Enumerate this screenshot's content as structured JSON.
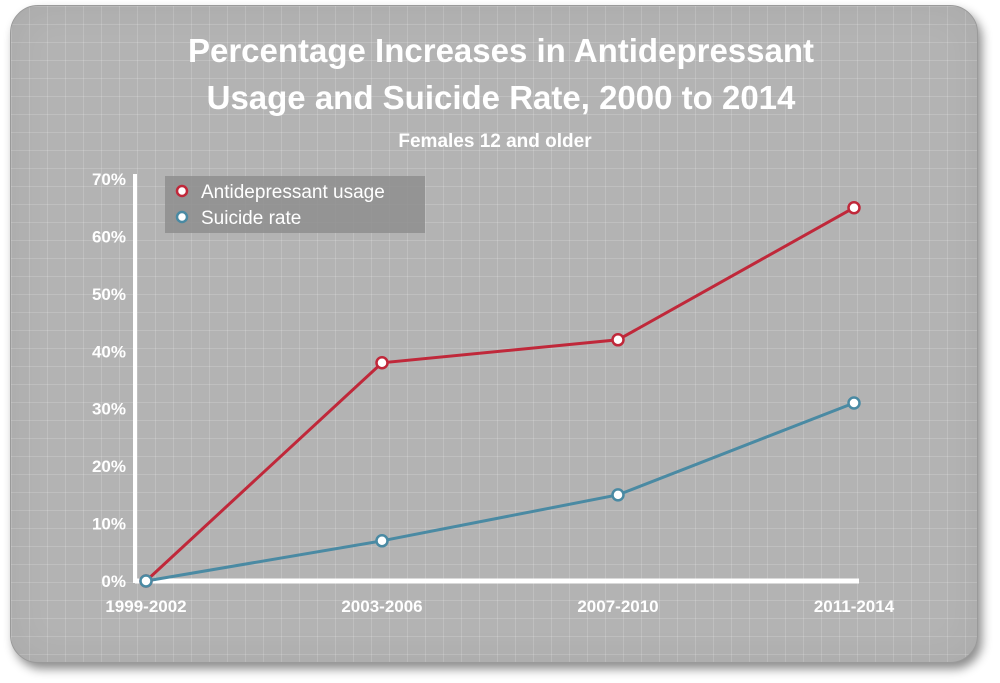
{
  "chart_data": {
    "type": "line",
    "title_lines": [
      "Percentage Increases in Antidepressant",
      "Usage and Suicide Rate, 2000 to 2014"
    ],
    "subtitle": "Females 12 and older",
    "categories": [
      "1999-2002",
      "2003-2006",
      "2007-2010",
      "2011-2014"
    ],
    "y_ticks": [
      "0%",
      "10%",
      "20%",
      "30%",
      "40%",
      "50%",
      "60%",
      "70%"
    ],
    "ylim": [
      0,
      70
    ],
    "grid": true,
    "legend_position": "top-left",
    "series": [
      {
        "name": "Antidepressant usage",
        "values": [
          0,
          38,
          42,
          65
        ],
        "color": "#c0283a"
      },
      {
        "name": "Suicide rate",
        "values": [
          0,
          7,
          15,
          31
        ],
        "color": "#4a8aa3"
      }
    ]
  }
}
